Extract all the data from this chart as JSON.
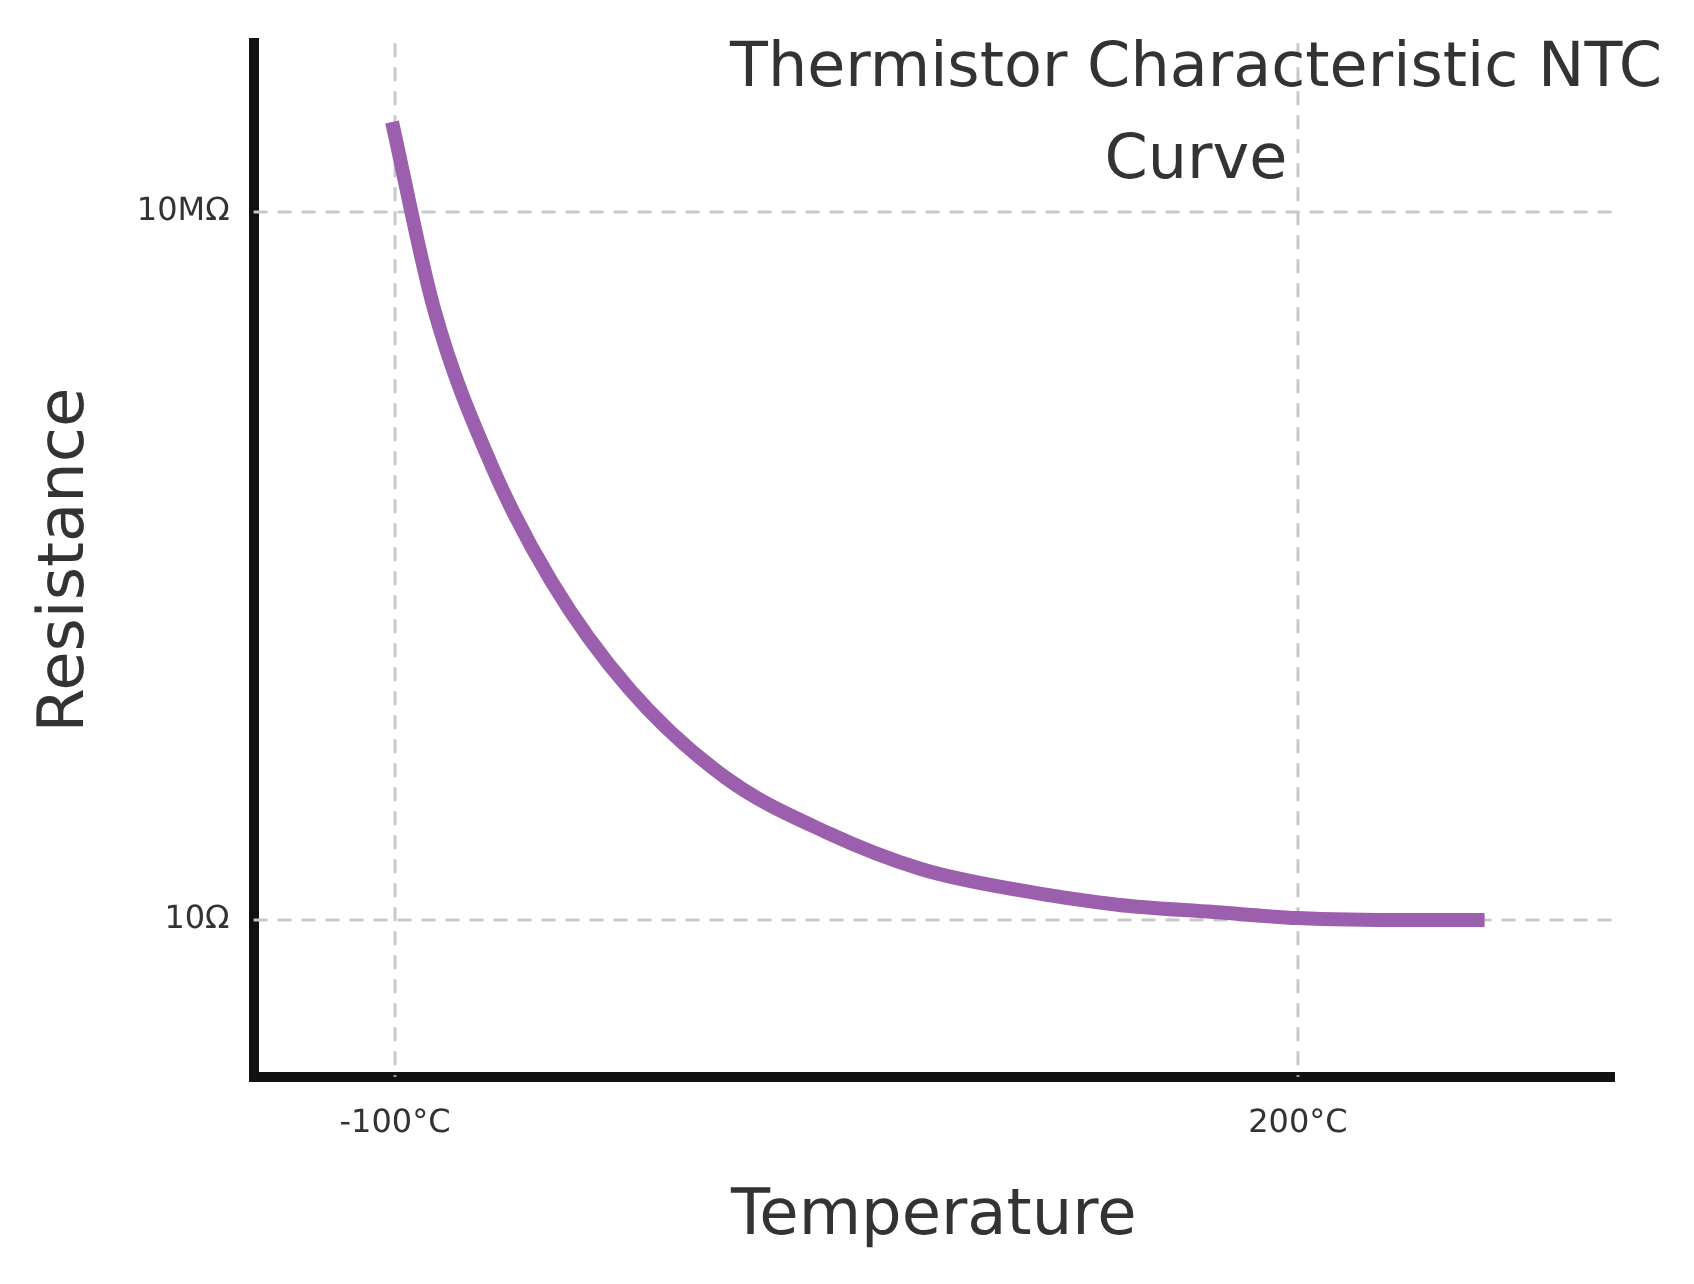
{
  "chart_data": {
    "type": "line",
    "title": "Thermistor Characteristic NTC Curve",
    "xlabel": "Temperature",
    "ylabel": "Resistance",
    "x": [
      -101,
      -87,
      -68,
      -48,
      -22,
      10,
      43,
      75,
      107,
      140,
      172,
      200,
      237,
      262
    ],
    "series": [
      {
        "color": "#9b5fad",
        "values": [
          58000000,
          1500000,
          72000,
          7400,
          900,
          160,
          56,
          27,
          18,
          13.5,
          11.7,
          10.4,
          10,
          10
        ]
      }
    ],
    "log": "y",
    "xlim": [
      -147,
      305
    ],
    "ylim": [
      0.47,
      270000000
    ],
    "xticks": [
      {
        "value": -100,
        "label": "-100°C"
      },
      {
        "value": 200,
        "label": "200°C"
      }
    ],
    "yticks": [
      {
        "value": 10,
        "label": "10Ω"
      },
      {
        "value": 10000000,
        "label": "10MΩ"
      }
    ],
    "ref_lines": [
      {
        "axis": "x",
        "value": -100,
        "color": "#c8c8c8",
        "line_style": "dashed"
      },
      {
        "axis": "x",
        "value": 200,
        "color": "#c8c8c8",
        "line_style": "dashed"
      },
      {
        "axis": "y",
        "value": 10,
        "color": "#c8c8c8",
        "line_style": "dashed"
      },
      {
        "axis": "y",
        "value": 10000000,
        "color": "#c8c8c8",
        "line_style": "dashed"
      }
    ],
    "grid": false,
    "legend": false,
    "marker": "none",
    "line_style": "solid"
  }
}
